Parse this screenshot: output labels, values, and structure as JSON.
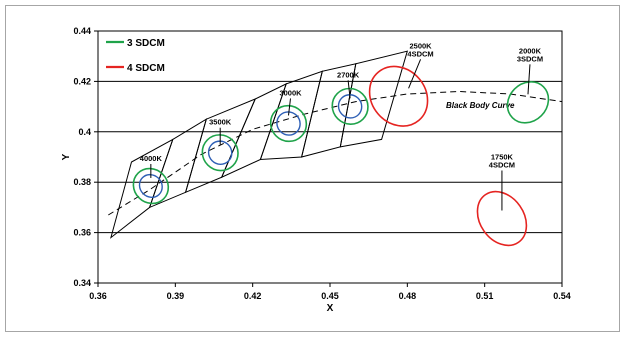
{
  "chart_data": {
    "type": "scatter",
    "xlabel": "X",
    "ylabel": "Y",
    "xlim": [
      0.36,
      0.54
    ],
    "ylim": [
      0.34,
      0.44
    ],
    "x_ticks": [
      0.36,
      0.39,
      0.42,
      0.45,
      0.48,
      0.51,
      0.54
    ],
    "y_ticks": [
      0.34,
      0.36,
      0.38,
      0.4,
      0.42,
      0.44
    ],
    "horizontal_grid": true,
    "legend_position": "top-left",
    "colors": {
      "sdcm3": "#1fa34a",
      "sdcm4": "#e52421",
      "inner": "#2e5fb5",
      "quad": "#000000"
    },
    "legend": [
      {
        "label": "3 SDCM",
        "color": "#1fa34a"
      },
      {
        "label": "4 SDCM",
        "color": "#e52421"
      }
    ],
    "black_body_curve": {
      "label": "Black Body Curve",
      "points": [
        [
          0.364,
          0.367
        ],
        [
          0.38,
          0.377
        ],
        [
          0.4,
          0.391
        ],
        [
          0.42,
          0.401
        ],
        [
          0.44,
          0.407
        ],
        [
          0.46,
          0.412
        ],
        [
          0.48,
          0.415
        ],
        [
          0.5,
          0.416
        ],
        [
          0.52,
          0.415
        ],
        [
          0.54,
          0.412
        ]
      ]
    },
    "quadrangles": [
      {
        "points": [
          [
            0.365,
            0.358
          ],
          [
            0.373,
            0.388
          ],
          [
            0.389,
            0.397
          ],
          [
            0.38,
            0.37
          ]
        ]
      },
      {
        "points": [
          [
            0.38,
            0.37
          ],
          [
            0.389,
            0.397
          ],
          [
            0.402,
            0.405
          ],
          [
            0.394,
            0.376
          ]
        ]
      },
      {
        "points": [
          [
            0.394,
            0.376
          ],
          [
            0.402,
            0.405
          ],
          [
            0.421,
            0.413
          ],
          [
            0.408,
            0.382
          ]
        ]
      },
      {
        "points": [
          [
            0.408,
            0.382
          ],
          [
            0.421,
            0.413
          ],
          [
            0.433,
            0.419
          ],
          [
            0.423,
            0.389
          ]
        ]
      },
      {
        "points": [
          [
            0.423,
            0.389
          ],
          [
            0.433,
            0.419
          ],
          [
            0.447,
            0.424
          ],
          [
            0.439,
            0.39
          ]
        ]
      },
      {
        "points": [
          [
            0.439,
            0.39
          ],
          [
            0.447,
            0.424
          ],
          [
            0.46,
            0.427
          ],
          [
            0.454,
            0.394
          ]
        ]
      },
      {
        "points": [
          [
            0.454,
            0.394
          ],
          [
            0.46,
            0.427
          ],
          [
            0.48,
            0.432
          ],
          [
            0.47,
            0.397
          ]
        ]
      }
    ],
    "ellipses": [
      {
        "label": "4000K",
        "cx": 0.3805,
        "cy": 0.3785,
        "rx": 0.0065,
        "ry": 0.0072,
        "rot": 45,
        "sdcm": 3,
        "inner_scale": 0.65
      },
      {
        "label": "3500K",
        "cx": 0.4074,
        "cy": 0.3917,
        "rx": 0.0068,
        "ry": 0.0072,
        "rot": 45,
        "sdcm": 3,
        "inner_scale": 0.65
      },
      {
        "label": "3000K",
        "cx": 0.4339,
        "cy": 0.4033,
        "rx": 0.0068,
        "ry": 0.0072,
        "rot": 45,
        "sdcm": 3,
        "inner_scale": 0.65
      },
      {
        "label": "2700K",
        "cx": 0.4578,
        "cy": 0.4101,
        "rx": 0.0068,
        "ry": 0.0072,
        "rot": 45,
        "sdcm": 3,
        "inner_scale": 0.65
      },
      {
        "label": "2500K\n4SDCM",
        "cx": 0.4766,
        "cy": 0.4141,
        "rx": 0.0105,
        "ry": 0.0125,
        "rot": 40,
        "sdcm": 4,
        "inner_scale": 0
      },
      {
        "label": "2000K\n3SDCM",
        "cx": 0.5268,
        "cy": 0.4117,
        "rx": 0.0085,
        "ry": 0.0075,
        "rot": 45,
        "sdcm": 3,
        "inner_scale": 0
      },
      {
        "label": "1750K\n4SDCM",
        "cx": 0.5167,
        "cy": 0.3656,
        "rx": 0.0085,
        "ry": 0.0115,
        "rot": 35,
        "sdcm": 4,
        "inner_scale": 0
      }
    ]
  }
}
